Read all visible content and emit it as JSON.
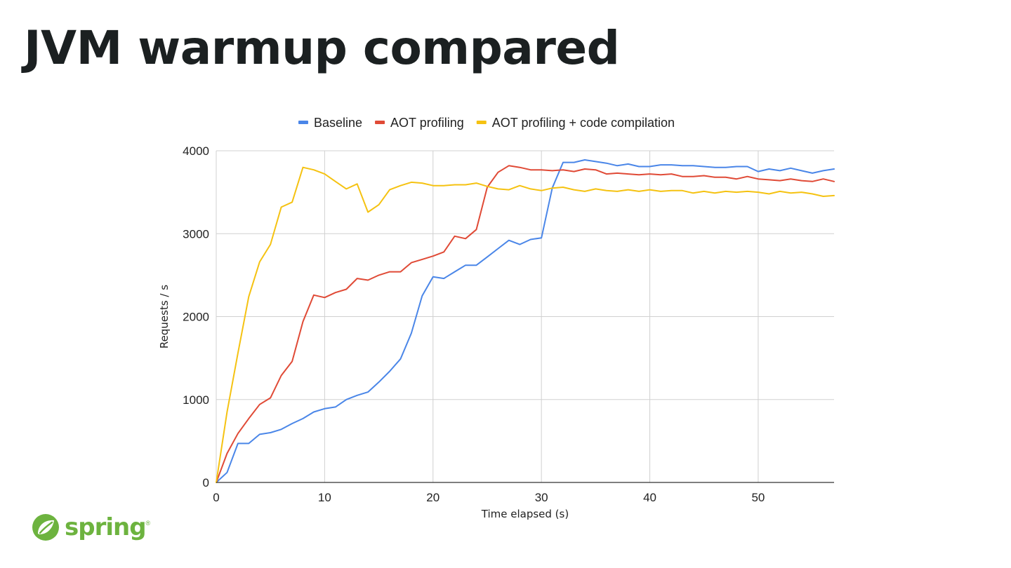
{
  "slide": {
    "title": "JVM warmup compared"
  },
  "logo": {
    "text": "spring",
    "registered": "®",
    "icon": "spring-leaf-icon",
    "color": "#6db33f"
  },
  "chart_data": {
    "type": "line",
    "title": "",
    "xlabel": "Time elapsed (s)",
    "ylabel": "Requests / s",
    "xlim": [
      0,
      57
    ],
    "ylim": [
      0,
      4000
    ],
    "xticks": [
      0,
      10,
      20,
      30,
      40,
      50
    ],
    "yticks": [
      0,
      1000,
      2000,
      3000,
      4000
    ],
    "grid": true,
    "legend_position": "top",
    "x": [
      0,
      1,
      2,
      3,
      4,
      5,
      6,
      7,
      8,
      9,
      10,
      11,
      12,
      13,
      14,
      15,
      16,
      17,
      18,
      19,
      20,
      21,
      22,
      23,
      24,
      25,
      26,
      27,
      28,
      29,
      30,
      31,
      32,
      33,
      34,
      35,
      36,
      37,
      38,
      39,
      40,
      41,
      42,
      43,
      44,
      45,
      46,
      47,
      48,
      49,
      50,
      51,
      52,
      53,
      54,
      55,
      56,
      57
    ],
    "series": [
      {
        "name": "Baseline",
        "color": "#4a86e8",
        "values": [
          0,
          120,
          470,
          470,
          580,
          600,
          640,
          710,
          770,
          850,
          890,
          910,
          1000,
          1050,
          1090,
          1210,
          1340,
          1490,
          1800,
          2250,
          2480,
          2460,
          2540,
          2620,
          2620,
          2720,
          2820,
          2920,
          2870,
          2930,
          2950,
          3550,
          3860,
          3860,
          3890,
          3870,
          3850,
          3820,
          3840,
          3810,
          3810,
          3830,
          3830,
          3820,
          3820,
          3810,
          3800,
          3800,
          3810,
          3810,
          3750,
          3780,
          3760,
          3790,
          3760,
          3730,
          3760,
          3780
        ]
      },
      {
        "name": "AOT profiling",
        "color": "#e04a36",
        "values": [
          0,
          350,
          590,
          770,
          940,
          1020,
          1290,
          1460,
          1940,
          2260,
          2230,
          2290,
          2330,
          2460,
          2440,
          2500,
          2540,
          2540,
          2650,
          2690,
          2730,
          2780,
          2970,
          2940,
          3050,
          3560,
          3740,
          3820,
          3800,
          3770,
          3770,
          3760,
          3770,
          3750,
          3780,
          3770,
          3720,
          3730,
          3720,
          3710,
          3720,
          3710,
          3720,
          3690,
          3690,
          3700,
          3680,
          3680,
          3660,
          3690,
          3660,
          3650,
          3640,
          3660,
          3640,
          3630,
          3660,
          3630
        ]
      },
      {
        "name": "AOT profiling + code compilation",
        "color": "#f5c211",
        "values": [
          0,
          850,
          1560,
          2240,
          2660,
          2870,
          3320,
          3380,
          3800,
          3770,
          3720,
          3630,
          3540,
          3600,
          3260,
          3350,
          3530,
          3580,
          3620,
          3610,
          3580,
          3580,
          3590,
          3590,
          3610,
          3570,
          3540,
          3530,
          3580,
          3540,
          3520,
          3550,
          3560,
          3530,
          3510,
          3540,
          3520,
          3510,
          3530,
          3510,
          3530,
          3510,
          3520,
          3520,
          3490,
          3510,
          3490,
          3510,
          3500,
          3510,
          3500,
          3480,
          3510,
          3490,
          3500,
          3480,
          3450,
          3460
        ]
      }
    ]
  }
}
